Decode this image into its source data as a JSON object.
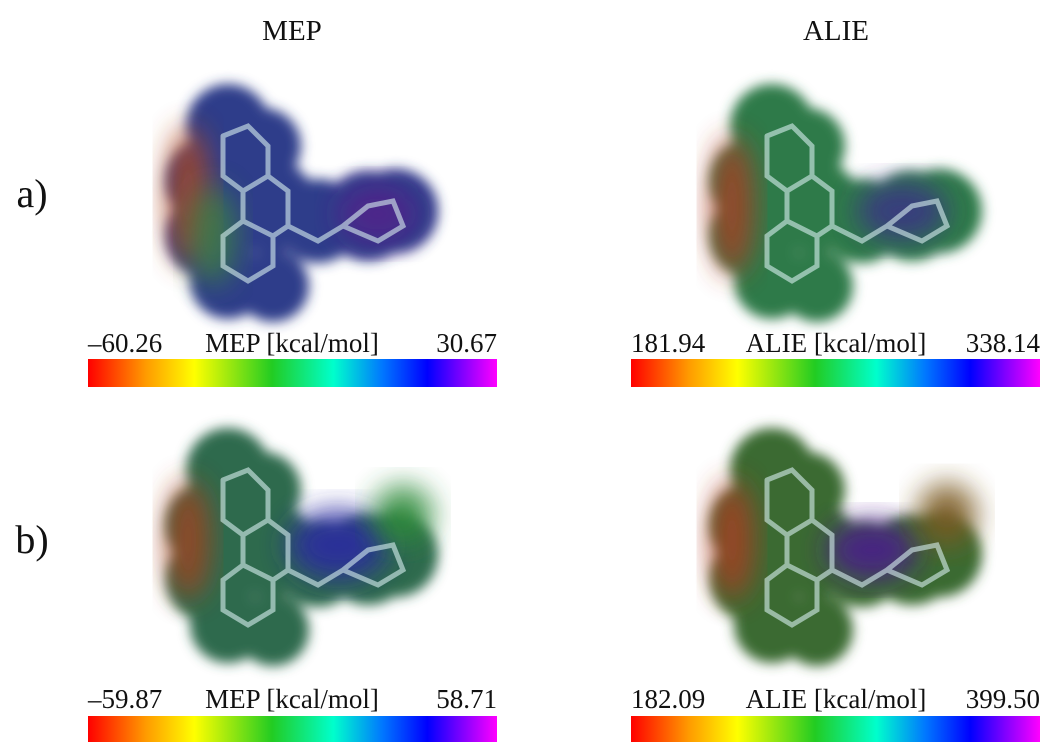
{
  "columns": [
    "MEP",
    "ALIE"
  ],
  "rows": [
    {
      "label": "a)",
      "panels": [
        {
          "min": "–60.26",
          "title": "MEP [kcal/mol]",
          "max": "30.67"
        },
        {
          "min": "181.94",
          "title": "ALIE [kcal/mol]",
          "max": "338.14"
        }
      ]
    },
    {
      "label": "b)",
      "panels": [
        {
          "min": "–59.87",
          "title": "MEP [kcal/mol]",
          "max": "58.71"
        },
        {
          "min": "182.09",
          "title": "ALIE [kcal/mol]",
          "max": "399.50"
        }
      ]
    }
  ]
}
